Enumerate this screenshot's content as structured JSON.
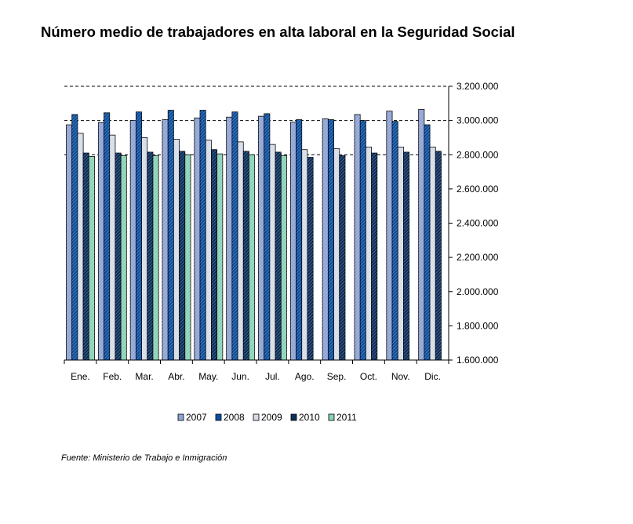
{
  "title": "Número medio de trabajadores en alta laboral en la Seguridad Social",
  "source": "Fuente: Ministerio de Trabajo e Inmigración",
  "colors": {
    "2007": "#8fa3d6",
    "2008": "#0a4fa0",
    "2009": "#d6dde8",
    "2010": "#0b2e5c",
    "2011": "#8ad2b4"
  },
  "chart_data": {
    "type": "bar",
    "title": "Número medio de trabajadores en alta laboral en la Seguridad Social",
    "xlabel": "",
    "ylabel": "",
    "ylim": [
      1600000,
      3200000
    ],
    "yticks": [
      1600000,
      1800000,
      2000000,
      2200000,
      2400000,
      2600000,
      2800000,
      3000000,
      3200000
    ],
    "ytick_labels": [
      "1.600.000",
      "1.800.000",
      "2.000.000",
      "2.200.000",
      "2.400.000",
      "2.600.000",
      "2.800.000",
      "3.000.000",
      "3.200.000"
    ],
    "y_axis_side": "right",
    "grid": "dashed at 2.800.000, 3.000.000 and 3.200.000",
    "legend_position": "bottom",
    "categories": [
      "Ene.",
      "Feb.",
      "Mar.",
      "Abr.",
      "May.",
      "Jun.",
      "Jul.",
      "Ago.",
      "Sep.",
      "Oct.",
      "Nov.",
      "Dic."
    ],
    "series": [
      {
        "name": "2007",
        "values": [
          2975000,
          2988000,
          3000000,
          3005000,
          3015000,
          3020000,
          3025000,
          2990000,
          3010000,
          3035000,
          3055000,
          3065000
        ]
      },
      {
        "name": "2008",
        "values": [
          3035000,
          3045000,
          3050000,
          3060000,
          3060000,
          3050000,
          3040000,
          3005000,
          3005000,
          3000000,
          2995000,
          2975000
        ]
      },
      {
        "name": "2009",
        "values": [
          2925000,
          2915000,
          2900000,
          2890000,
          2885000,
          2875000,
          2860000,
          2830000,
          2835000,
          2845000,
          2845000,
          2845000
        ]
      },
      {
        "name": "2010",
        "values": [
          2810000,
          2810000,
          2815000,
          2820000,
          2830000,
          2820000,
          2815000,
          2785000,
          2795000,
          2810000,
          2815000,
          2820000
        ]
      },
      {
        "name": "2011",
        "values": [
          2790000,
          2795000,
          2795000,
          2800000,
          2805000,
          2800000,
          2795000,
          null,
          null,
          null,
          null,
          null
        ]
      }
    ]
  }
}
